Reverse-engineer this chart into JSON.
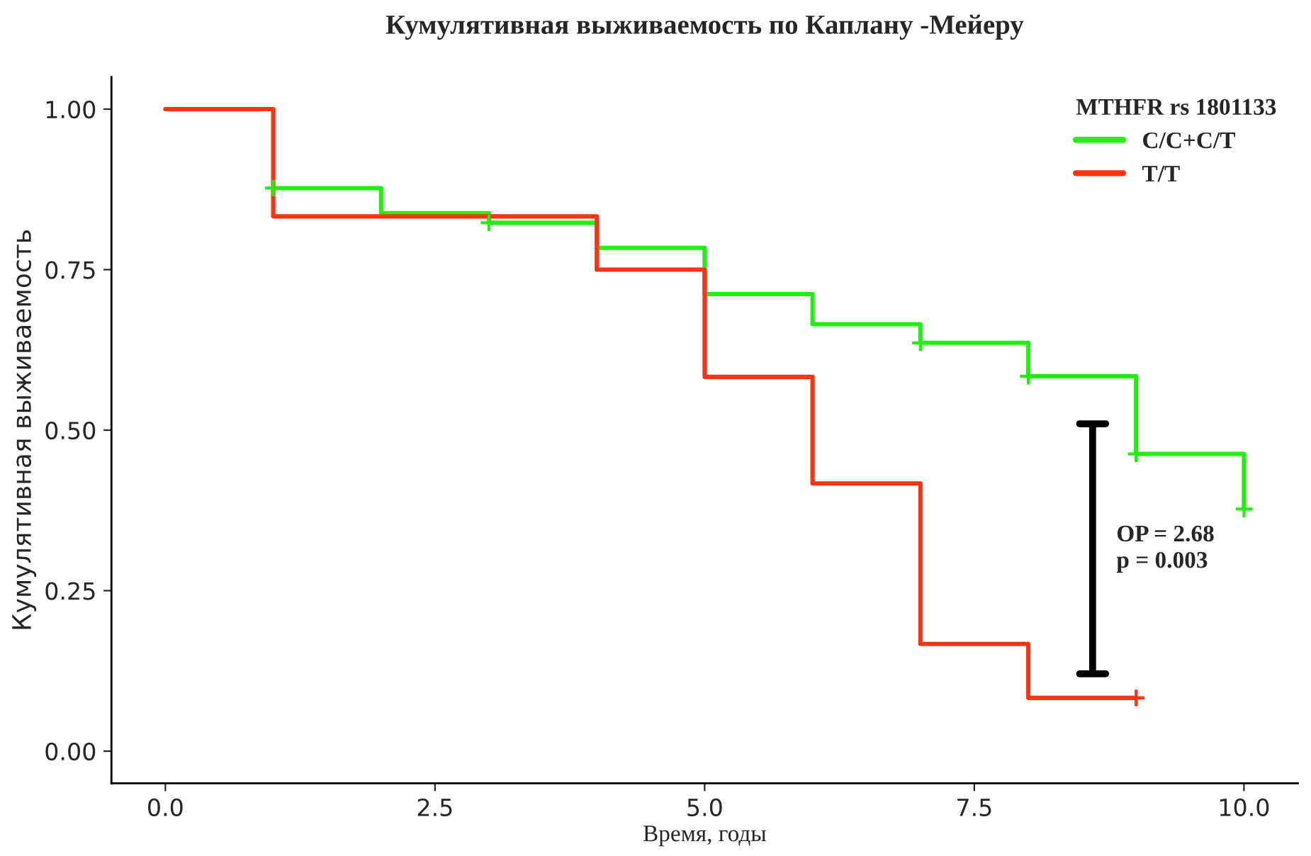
{
  "chart_data": {
    "type": "step",
    "title": "Кумулятивная выживаемость по Каплану -Мейеру",
    "xlabel": "Время, годы",
    "ylabel": "Кумулятивная выживаемость",
    "legend_title": "MTHFR rs 1801133",
    "legend": "top right",
    "grid": false,
    "marker": "none",
    "line_style": "solid",
    "xlim": [
      -0.5,
      10.5
    ],
    "ylim": [
      -0.05,
      1.05
    ],
    "xticks": [
      {
        "value": 0,
        "label": "0.0"
      },
      {
        "value": 2.5,
        "label": "2.5"
      },
      {
        "value": 5,
        "label": "5.0"
      },
      {
        "value": 7.5,
        "label": "7.5"
      },
      {
        "value": 10,
        "label": "10.0"
      }
    ],
    "yticks": [
      {
        "value": 0,
        "label": "0.00"
      },
      {
        "value": 0.25,
        "label": "0.25"
      },
      {
        "value": 0.5,
        "label": "0.50"
      },
      {
        "value": 0.75,
        "label": "0.75"
      },
      {
        "value": 1,
        "label": "1.00"
      }
    ],
    "series": [
      {
        "name": "C/C+C/T",
        "color": "#22ee11",
        "x": [
          1,
          2,
          3,
          4,
          5,
          6,
          7,
          8,
          9,
          10
        ],
        "values": [
          0.877,
          0.838,
          0.823,
          0.784,
          0.712,
          0.665,
          0.636,
          0.584,
          0.463,
          0.377
        ]
      },
      {
        "name": "T/T",
        "color": "#ff3311",
        "x": [
          0,
          1,
          4,
          5,
          6,
          7,
          8,
          9
        ],
        "values": [
          1.0,
          0.833,
          0.75,
          0.583,
          0.417,
          0.167,
          0.083,
          0.083
        ]
      },
      {
        "type": "scatter",
        "marker": "cross",
        "color": "#22ee11",
        "x": [
          1,
          3,
          7,
          8,
          9,
          10
        ],
        "values": [
          0.877,
          0.823,
          0.636,
          0.584,
          0.463,
          0.377
        ]
      },
      {
        "type": "scatter",
        "marker": "cross",
        "color": "#ff3311",
        "x": [
          9
        ],
        "values": [
          0.083
        ]
      }
    ],
    "annotations": [
      "OP = 2.68\np = 0.003"
    ]
  }
}
